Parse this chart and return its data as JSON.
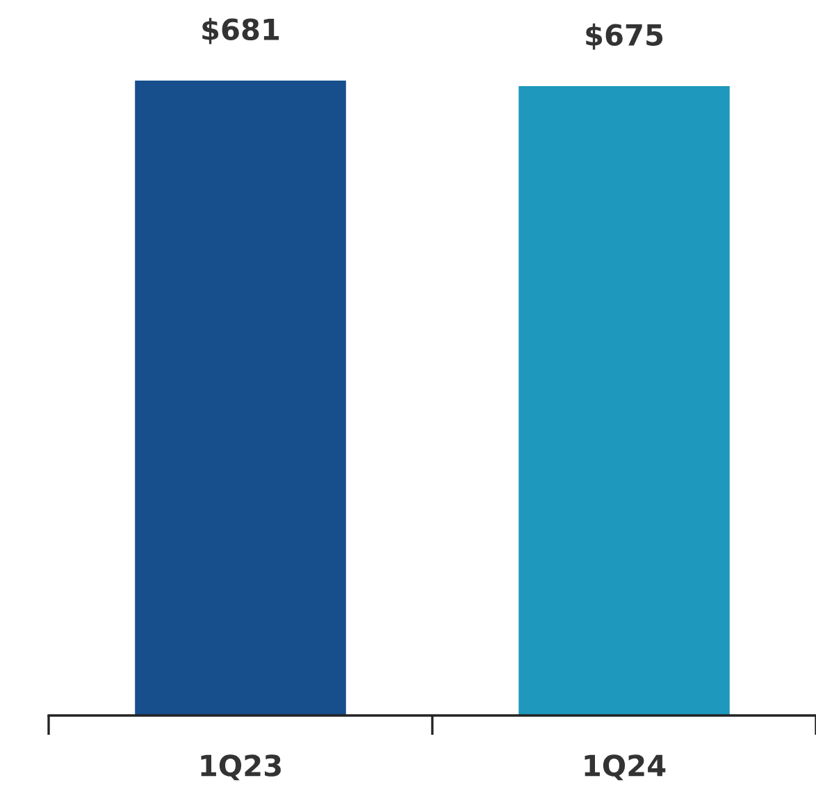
{
  "chart_data": {
    "type": "bar",
    "categories": [
      "1Q23",
      "1Q24"
    ],
    "values": [
      681,
      675
    ],
    "colors": [
      "#174f8c",
      "#1e98bc"
    ],
    "value_labels": [
      "$681",
      "$675"
    ],
    "grid": false,
    "legend": false
  }
}
